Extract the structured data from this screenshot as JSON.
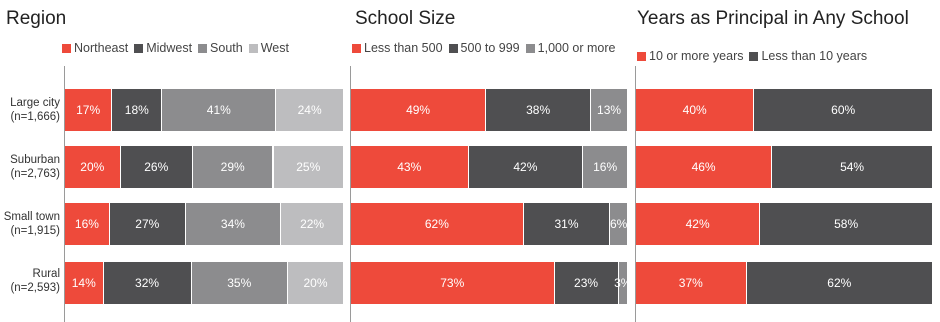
{
  "colors": {
    "red": "#ee4a3b",
    "dark": "#4f4f51",
    "mid": "#8c8c8e",
    "light": "#bdbdbf"
  },
  "rows": [
    {
      "label": "Large city",
      "n": "(n=1,666)"
    },
    {
      "label": "Suburban",
      "n": "(n=2,763)"
    },
    {
      "label": "Small town",
      "n": "(n=1,915)"
    },
    {
      "label": "Rural",
      "n": "(n=2,593)"
    }
  ],
  "chart_data": [
    {
      "type": "bar",
      "orientation": "horizontal",
      "stacked": true,
      "title": "Region",
      "categories": [
        "Large city (n=1,666)",
        "Suburban (n=2,763)",
        "Small town (n=1,915)",
        "Rural (n=2,593)"
      ],
      "series": [
        {
          "name": "Northeast",
          "color": "#ee4a3b",
          "values": [
            17,
            20,
            16,
            14
          ]
        },
        {
          "name": "Midwest",
          "color": "#4f4f51",
          "values": [
            18,
            26,
            27,
            32
          ]
        },
        {
          "name": "South",
          "color": "#8c8c8e",
          "values": [
            41,
            29,
            34,
            35
          ]
        },
        {
          "name": "West",
          "color": "#bdbdbf",
          "values": [
            24,
            25,
            22,
            20
          ]
        }
      ],
      "value_suffix": "%",
      "legend": "top"
    },
    {
      "type": "bar",
      "orientation": "horizontal",
      "stacked": true,
      "title": "School Size",
      "categories": [
        "Large city (n=1,666)",
        "Suburban (n=2,763)",
        "Small town (n=1,915)",
        "Rural (n=2,593)"
      ],
      "series": [
        {
          "name": "Less than 500",
          "color": "#ee4a3b",
          "values": [
            49,
            43,
            62,
            73
          ]
        },
        {
          "name": "500 to 999",
          "color": "#4f4f51",
          "values": [
            38,
            42,
            31,
            23
          ]
        },
        {
          "name": "1,000 or more",
          "color": "#8c8c8e",
          "values": [
            13,
            16,
            6,
            3
          ]
        }
      ],
      "value_suffix": "%",
      "legend": "top"
    },
    {
      "type": "bar",
      "orientation": "horizontal",
      "stacked": true,
      "title": "Years as Principal in Any School",
      "categories": [
        "Large city (n=1,666)",
        "Suburban (n=2,763)",
        "Small town (n=1,915)",
        "Rural (n=2,593)"
      ],
      "series": [
        {
          "name": "10 or more years",
          "color": "#ee4a3b",
          "values": [
            40,
            46,
            42,
            37
          ]
        },
        {
          "name": "Less than 10 years",
          "color": "#4f4f51",
          "values": [
            60,
            54,
            58,
            62
          ]
        }
      ],
      "value_suffix": "%",
      "legend": "top"
    }
  ]
}
